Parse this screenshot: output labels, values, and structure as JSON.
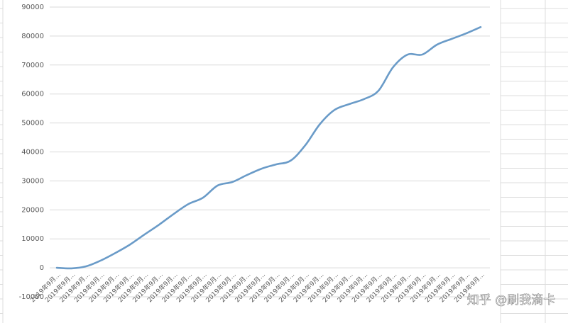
{
  "chart_data": {
    "type": "line",
    "categories": [
      "2019年9月…",
      "2019年9月…",
      "2019年9月…",
      "2019年9月…",
      "2019年9月…",
      "2019年9月…",
      "2019年9月…",
      "2019年9月…",
      "2019年9月…",
      "2019年9月…",
      "2019年9月…",
      "2019年9月…",
      "2019年9月…",
      "2019年9月…",
      "2019年9月…",
      "2019年9月…",
      "2019年9月…",
      "2019年9月…",
      "2019年9月…",
      "2019年9月…",
      "2019年9月…",
      "2019年9月…",
      "2019年9月…",
      "2019年9月…",
      "2019年9月…",
      "2019年9月…",
      "2019年9月…",
      "2019年9月…",
      "2019年9月…",
      "2019年9月…"
    ],
    "values": [
      0,
      -200,
      500,
      2500,
      5100,
      8000,
      11500,
      14900,
      18600,
      22000,
      24200,
      28400,
      29600,
      32000,
      34200,
      35700,
      37000,
      42300,
      49600,
      54500,
      56500,
      58200,
      61100,
      69200,
      73600,
      73600,
      77000,
      79000,
      80900,
      83100
    ],
    "color": "#6a9bc8",
    "ylim": [
      -10000,
      90000
    ],
    "yticks": [
      -10000,
      0,
      10000,
      20000,
      30000,
      40000,
      50000,
      60000,
      70000,
      80000,
      90000
    ],
    "grid": true,
    "watermark": "知乎 @刷我滴卡"
  }
}
